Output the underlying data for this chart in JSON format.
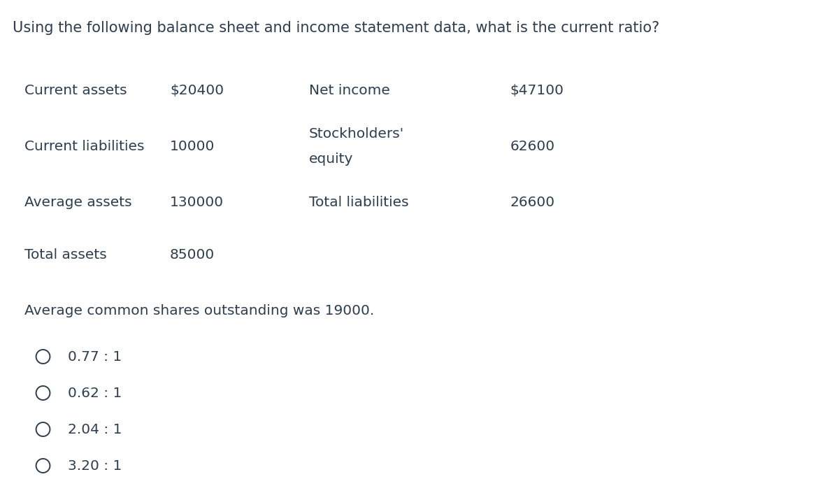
{
  "title": "Using the following balance sheet and income statement data, what is the current ratio?",
  "title_fontsize": 15,
  "title_color": "#2d3e50",
  "bg_color": "#ffffff",
  "text_color": "#2d3e50",
  "table_rows": [
    {
      "left_label": "Current assets",
      "left_value": "$20400",
      "right_label": "Net income",
      "right_value": "$47100",
      "right_label_line2": null
    },
    {
      "left_label": "Current liabilities",
      "left_value": "10000",
      "right_label": "Stockholders'",
      "right_value": "62600",
      "right_label_line2": "equity"
    },
    {
      "left_label": "Average assets",
      "left_value": "130000",
      "right_label": "Total liabilities",
      "right_value": "26600",
      "right_label_line2": null
    },
    {
      "left_label": "Total assets",
      "left_value": "85000",
      "right_label": null,
      "right_value": null,
      "right_label_line2": null
    }
  ],
  "note": "Average common shares outstanding was 19000.",
  "options": [
    "0.77 : 1",
    "0.62 : 1",
    "2.04 : 1",
    "3.20 : 1"
  ],
  "font_size": 14.5,
  "note_font_size": 14.5,
  "option_font_size": 14.5
}
